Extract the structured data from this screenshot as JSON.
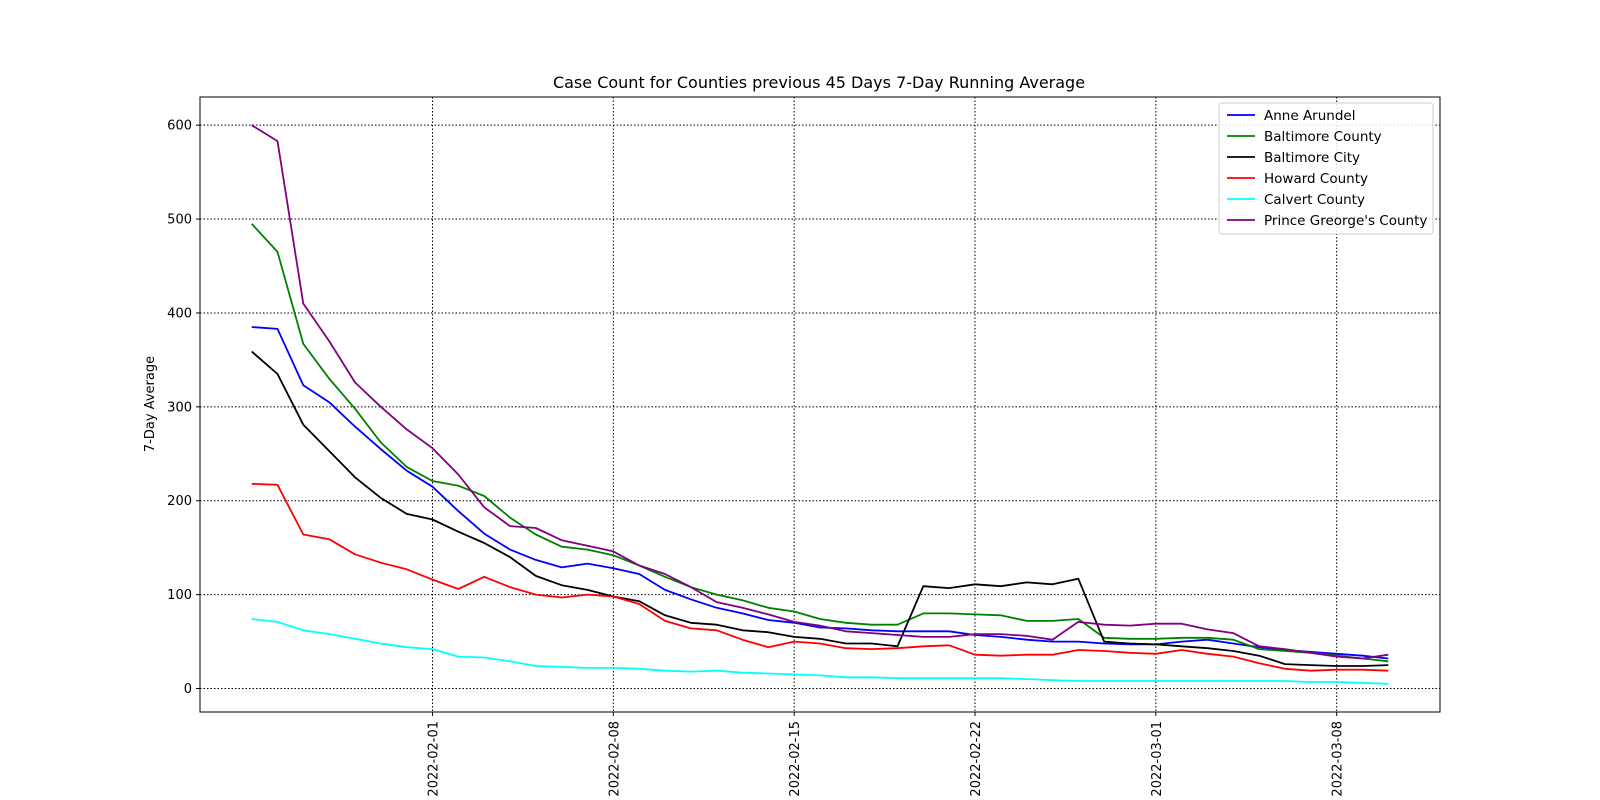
{
  "chart_data": {
    "type": "line",
    "title": "Case Count for Counties previous 45 Days 7-Day Running Average",
    "xlabel": "",
    "ylabel": "7-Day Average",
    "x_start": "2022-01-25",
    "x": [
      "2022-01-25",
      "2022-01-26",
      "2022-01-27",
      "2022-01-28",
      "2022-01-29",
      "2022-01-30",
      "2022-01-31",
      "2022-02-01",
      "2022-02-02",
      "2022-02-03",
      "2022-02-04",
      "2022-02-05",
      "2022-02-06",
      "2022-02-07",
      "2022-02-08",
      "2022-02-09",
      "2022-02-10",
      "2022-02-11",
      "2022-02-12",
      "2022-02-13",
      "2022-02-14",
      "2022-02-15",
      "2022-02-16",
      "2022-02-17",
      "2022-02-18",
      "2022-02-19",
      "2022-02-20",
      "2022-02-21",
      "2022-02-22",
      "2022-02-23",
      "2022-02-24",
      "2022-02-25",
      "2022-02-26",
      "2022-02-27",
      "2022-02-28",
      "2022-03-01",
      "2022-03-02",
      "2022-03-03",
      "2022-03-04",
      "2022-03-05",
      "2022-03-06",
      "2022-03-07",
      "2022-03-08",
      "2022-03-09",
      "2022-03-10"
    ],
    "x_ticks": [
      "2022-02-01",
      "2022-02-08",
      "2022-02-15",
      "2022-02-22",
      "2022-03-01",
      "2022-03-08"
    ],
    "y_ticks": [
      0,
      100,
      200,
      300,
      400,
      500,
      600
    ],
    "ylim": [
      -25,
      630
    ],
    "xlim": [
      "2022-01-23",
      "2022-03-12"
    ],
    "grid": true,
    "legend_position": "top-right",
    "series": [
      {
        "name": "Anne Arundel",
        "color": "#0000ff",
        "values": [
          385,
          383,
          323,
          305,
          279,
          255,
          232,
          215,
          189,
          165,
          148,
          137,
          129,
          133,
          128,
          122,
          105,
          95,
          86,
          80,
          73,
          70,
          65,
          64,
          62,
          61,
          61,
          61,
          57,
          55,
          52,
          50,
          50,
          48,
          47,
          47,
          50,
          52,
          48,
          44,
          41,
          39,
          37,
          35,
          32
        ]
      },
      {
        "name": "Baltimore County",
        "color": "#008000",
        "values": [
          495,
          465,
          367,
          330,
          298,
          262,
          236,
          221,
          216,
          205,
          182,
          164,
          151,
          148,
          142,
          131,
          119,
          108,
          100,
          94,
          86,
          82,
          74,
          70,
          68,
          68,
          80,
          80,
          79,
          78,
          72,
          72,
          74,
          54,
          53,
          53,
          54,
          54,
          52,
          42,
          40,
          38,
          35,
          32,
          29
        ]
      },
      {
        "name": "Baltimore City",
        "color": "#000000",
        "values": [
          359,
          335,
          281,
          253,
          225,
          203,
          186,
          180,
          167,
          155,
          140,
          120,
          110,
          105,
          98,
          93,
          78,
          70,
          68,
          62,
          60,
          55,
          53,
          48,
          48,
          45,
          109,
          107,
          111,
          109,
          113,
          111,
          117,
          50,
          48,
          47,
          45,
          43,
          40,
          35,
          26,
          25,
          24,
          24,
          25
        ]
      },
      {
        "name": "Howard County",
        "color": "#ff0000",
        "values": [
          218,
          217,
          164,
          159,
          143,
          134,
          127,
          116,
          106,
          119,
          108,
          100,
          97,
          100,
          98,
          90,
          72,
          64,
          62,
          52,
          44,
          50,
          48,
          43,
          42,
          43,
          45,
          46,
          36,
          35,
          36,
          36,
          41,
          40,
          38,
          37,
          41,
          37,
          34,
          27,
          21,
          19,
          20,
          20,
          19
        ]
      },
      {
        "name": "Calvert County",
        "color": "#00ffff",
        "values": [
          74,
          71,
          62,
          58,
          53,
          48,
          44,
          42,
          34,
          33,
          29,
          24,
          23,
          22,
          22,
          21,
          19,
          18,
          19,
          17,
          16,
          15,
          14,
          12,
          12,
          11,
          11,
          11,
          11,
          11,
          10,
          9,
          8,
          8,
          8,
          8,
          8,
          8,
          8,
          8,
          8,
          7,
          7,
          6,
          5
        ]
      },
      {
        "name": "Prince Greorge's County",
        "color": "#800080",
        "values": [
          600,
          583,
          410,
          370,
          326,
          300,
          276,
          256,
          228,
          193,
          173,
          171,
          158,
          152,
          146,
          131,
          122,
          108,
          92,
          86,
          79,
          71,
          67,
          61,
          59,
          57,
          55,
          55,
          58,
          58,
          56,
          52,
          71,
          68,
          67,
          69,
          69,
          63,
          59,
          45,
          42,
          38,
          34,
          32,
          36
        ]
      }
    ]
  }
}
